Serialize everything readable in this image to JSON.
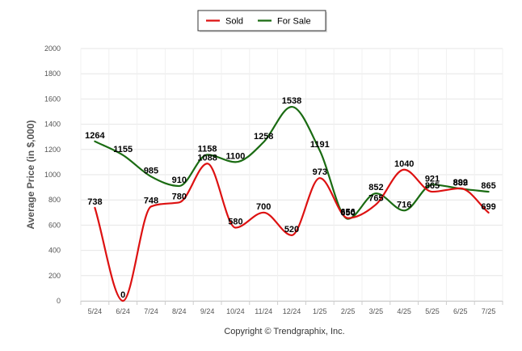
{
  "chart_data": {
    "type": "line",
    "smooth": true,
    "categories": [
      "5/24",
      "6/24",
      "7/24",
      "8/24",
      "9/24",
      "10/24",
      "11/24",
      "12/24",
      "1/25",
      "2/25",
      "3/25",
      "4/25",
      "5/25",
      "6/25",
      "7/25"
    ],
    "series": [
      {
        "name": "Sold",
        "color": "#dd1111",
        "values": [
          738,
          0,
          748,
          780,
          1088,
          580,
          700,
          520,
          973,
          656,
          765,
          1040,
          865,
          892,
          699
        ]
      },
      {
        "name": "For Sale",
        "color": "#1a6b12",
        "values": [
          1264,
          1155,
          985,
          910,
          1158,
          1100,
          1258,
          1538,
          1191,
          650,
          852,
          716,
          921,
          889,
          865
        ]
      }
    ],
    "ylabel": "Average Price (in $,000)",
    "ylim": [
      0,
      2000
    ],
    "yticks": [
      0,
      200,
      400,
      600,
      800,
      1000,
      1200,
      1400,
      1600,
      1800,
      2000
    ],
    "grid": true,
    "legend_position": "top-center",
    "credit": "Copyright © Trendgraphix, Inc."
  }
}
